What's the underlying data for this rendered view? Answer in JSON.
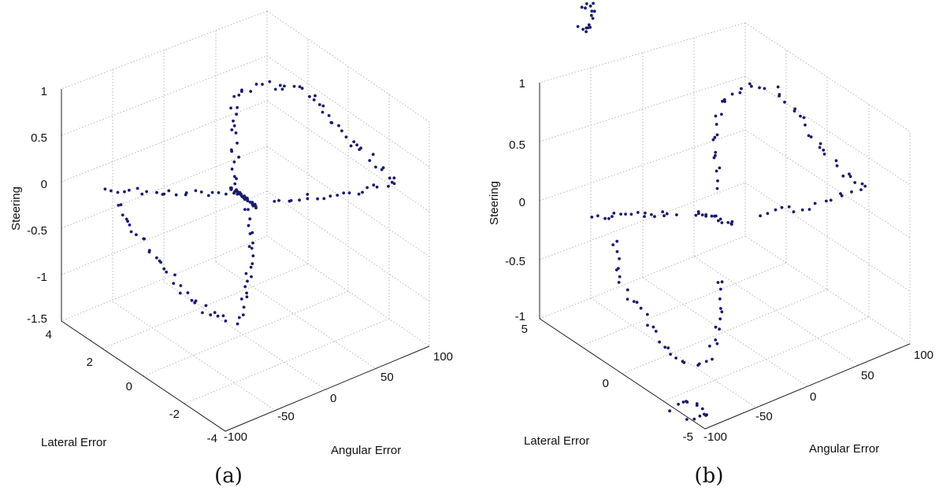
{
  "panels": [
    {
      "caption": "(a)",
      "chart_data": {
        "type": "scatter",
        "dimensions": 3,
        "xlabel": "Angular Error",
        "ylabel": "Lateral Error",
        "zlabel": "Steering",
        "xlim": [
          -100,
          100
        ],
        "ylim": [
          -4,
          4
        ],
        "zlim": [
          -1.5,
          1
        ],
        "x_ticks": [
          "-100",
          "-50",
          "0",
          "50",
          "100"
        ],
        "y_ticks": [
          "-4",
          "-2",
          "0",
          "2",
          "4"
        ],
        "z_ticks": [
          "-1.5",
          "-1",
          "-0.5",
          "0",
          "0.5",
          "1"
        ],
        "grid": true,
        "marker_color": "#1a1a6e"
      }
    },
    {
      "caption": "(b)",
      "chart_data": {
        "type": "scatter",
        "dimensions": 3,
        "xlabel": "Angular Error",
        "ylabel": "Lateral Error",
        "zlabel": "Steering",
        "xlim": [
          -100,
          100
        ],
        "ylim": [
          -5,
          5
        ],
        "zlim": [
          -1,
          1
        ],
        "x_ticks": [
          "-100",
          "-50",
          "0",
          "50",
          "100"
        ],
        "y_ticks": [
          "-5",
          "0",
          "5"
        ],
        "z_ticks": [
          "-1",
          "-0.5",
          "0",
          "0.5",
          "1"
        ],
        "grid": true,
        "marker_color": "#1a1a6e"
      }
    }
  ]
}
